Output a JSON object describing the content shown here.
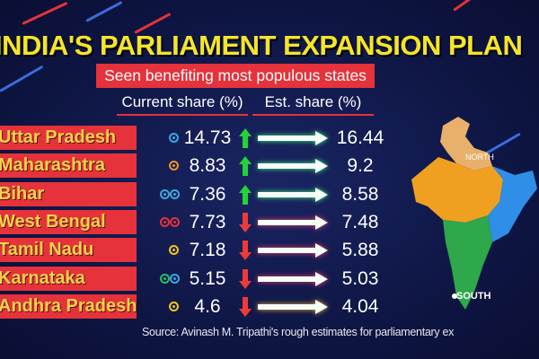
{
  "header": {
    "title": "INDIA'S PARLIAMENT EXPANSION PLAN",
    "subtitle": "Seen benefiting most populous states"
  },
  "columns": {
    "current": "Current share (%)",
    "estimated": "Est. share (%)"
  },
  "source": "Source: Avinash M. Tripathi's rough estimates for parliamentary ex",
  "map": {
    "north_label": "NORTH",
    "south_label": "SOUTH"
  },
  "colors": {
    "accent": "#e5323b",
    "title": "#f5e52a",
    "up": "#22d33a",
    "down": "#ef3a3a",
    "background": "#0f1640"
  },
  "chart_data": {
    "type": "table",
    "title": "INDIA'S PARLIAMENT EXPANSION PLAN",
    "subtitle": "Seen benefiting most populous states",
    "columns": [
      "Current share (%)",
      "Est. share (%)"
    ],
    "rows": [
      {
        "state": "Uttar Pradesh",
        "current": "14.73",
        "estimated": "16.44",
        "trend": "up",
        "icons": [
          "#3aa8e0"
        ]
      },
      {
        "state": "Maharashtra",
        "current": "8.83",
        "estimated": "9.2",
        "trend": "up",
        "icons": [
          "#f0932b"
        ]
      },
      {
        "state": "Bihar",
        "current": "7.36",
        "estimated": "8.58",
        "trend": "up",
        "icons": [
          "#3aa8e0",
          "#3aa8e0"
        ]
      },
      {
        "state": "West Bengal",
        "current": "7.73",
        "estimated": "7.48",
        "trend": "down",
        "icons": [
          "#e5323b",
          "#e5323b"
        ]
      },
      {
        "state": "Tamil Nadu",
        "current": "7.18",
        "estimated": "5.88",
        "trend": "down",
        "icons": [
          "#f5c518"
        ]
      },
      {
        "state": "Karnataka",
        "current": "5.15",
        "estimated": "5.03",
        "trend": "down",
        "icons": [
          "#22c55e",
          "#3aa8e0"
        ]
      },
      {
        "state": "Andhra Pradesh",
        "current": "4.6",
        "estimated": "4.04",
        "trend": "down",
        "icons": [
          "#f5c518"
        ]
      }
    ]
  }
}
